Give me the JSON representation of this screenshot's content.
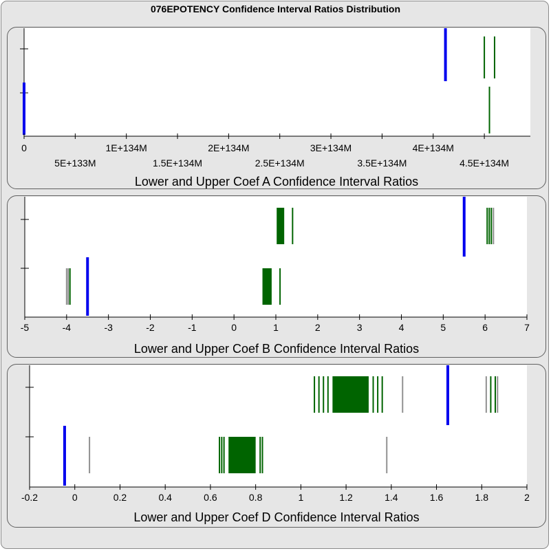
{
  "title": "076EPOTENCY Confidence Interval Ratios Distribution",
  "colors": {
    "bound": "#0000ee",
    "in_range": "#006400",
    "other": "#909090",
    "frame": "#e6e6e6"
  },
  "chart_data": [
    {
      "type": "strip",
      "xlabel": "Lower and Upper Coef A Confidence Interval Ratios",
      "xlim": [
        0,
        4.95e+134
      ],
      "ticks": [
        {
          "v": 0,
          "label": "0",
          "row": 1
        },
        {
          "v": 5e+133,
          "label": "5E+133M",
          "row": 2
        },
        {
          "v": 1e+134,
          "label": "1E+134M",
          "row": 1
        },
        {
          "v": 1.5e+134,
          "label": "1.5E+134M",
          "row": 2
        },
        {
          "v": 2e+134,
          "label": "2E+134M",
          "row": 1
        },
        {
          "v": 2.5e+134,
          "label": "2.5E+134M",
          "row": 2
        },
        {
          "v": 3e+134,
          "label": "3E+134M",
          "row": 1
        },
        {
          "v": 3.5e+134,
          "label": "3.5E+134M",
          "row": 2
        },
        {
          "v": 4e+134,
          "label": "4E+134M",
          "row": 1
        },
        {
          "v": 4.5e+134,
          "label": "4.5E+134M",
          "row": 2
        }
      ],
      "upper": {
        "bound": 4.12e+134,
        "green": [
          4.5e+134,
          4.6e+134
        ],
        "gray": []
      },
      "lower": {
        "bound": 0,
        "green": [
          4.55e+134
        ],
        "gray": []
      }
    },
    {
      "type": "strip",
      "xlabel": "Lower and Upper Coef B Confidence Interval Ratios",
      "xlim": [
        -5,
        7
      ],
      "ticks": [
        {
          "v": -5,
          "label": "-5",
          "row": 1
        },
        {
          "v": -4,
          "label": "-4",
          "row": 1
        },
        {
          "v": -3,
          "label": "-3",
          "row": 1
        },
        {
          "v": -2,
          "label": "-2",
          "row": 1
        },
        {
          "v": -1,
          "label": "-1",
          "row": 1
        },
        {
          "v": 0,
          "label": "0",
          "row": 1
        },
        {
          "v": 1,
          "label": "1",
          "row": 1
        },
        {
          "v": 2,
          "label": "2",
          "row": 1
        },
        {
          "v": 3,
          "label": "3",
          "row": 1
        },
        {
          "v": 4,
          "label": "4",
          "row": 1
        },
        {
          "v": 5,
          "label": "5",
          "row": 1
        },
        {
          "v": 6,
          "label": "6",
          "row": 1
        },
        {
          "v": 7,
          "label": "7",
          "row": 1
        }
      ],
      "upper": {
        "bound": 5.5,
        "green_band": [
          1.02,
          1.2
        ],
        "green": [
          1.4,
          6.05,
          6.1,
          6.15
        ],
        "gray": [
          6.2
        ]
      },
      "lower": {
        "bound": -3.5,
        "green_band": [
          0.68,
          0.9
        ],
        "green": [
          -3.92,
          1.1
        ],
        "gray": [
          -4.0,
          -3.96
        ]
      }
    },
    {
      "type": "strip",
      "xlabel": "Lower and Upper Coef D Confidence Interval Ratios",
      "xlim": [
        -0.2,
        2.0
      ],
      "ticks": [
        {
          "v": -0.2,
          "label": "-0.2",
          "row": 1
        },
        {
          "v": 0,
          "label": "0",
          "row": 1
        },
        {
          "v": 0.2,
          "label": "0.2",
          "row": 1
        },
        {
          "v": 0.4,
          "label": "0.4",
          "row": 1
        },
        {
          "v": 0.6,
          "label": "0.6",
          "row": 1
        },
        {
          "v": 0.8,
          "label": "0.8",
          "row": 1
        },
        {
          "v": 1,
          "label": "1",
          "row": 1
        },
        {
          "v": 1.2,
          "label": "1.2",
          "row": 1
        },
        {
          "v": 1.4,
          "label": "1.4",
          "row": 1
        },
        {
          "v": 1.6,
          "label": "1.6",
          "row": 1
        },
        {
          "v": 1.8,
          "label": "1.8",
          "row": 1
        },
        {
          "v": 2,
          "label": "2",
          "row": 1
        }
      ],
      "upper": {
        "bound": 1.65,
        "green_band": [
          1.14,
          1.3
        ],
        "green": [
          1.06,
          1.08,
          1.1,
          1.12,
          1.32,
          1.34,
          1.36,
          1.84,
          1.86
        ],
        "gray": [
          1.45,
          1.82,
          1.87
        ]
      },
      "lower": {
        "bound": -0.045,
        "green_band": [
          0.68,
          0.8
        ],
        "green": [
          0.64,
          0.65,
          0.66,
          0.82,
          0.83
        ],
        "gray": [
          0.065,
          1.38
        ]
      }
    }
  ]
}
